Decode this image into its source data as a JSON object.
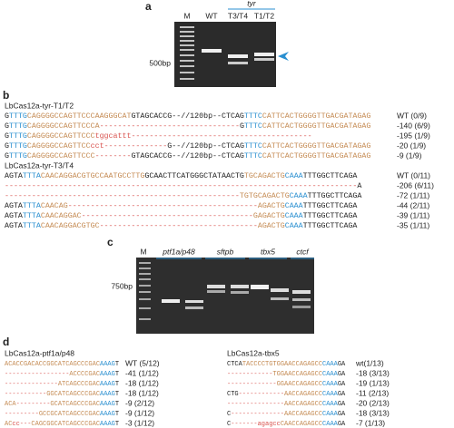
{
  "panel_a": {
    "label": "a",
    "lanes": [
      "M",
      "WT",
      "T3/T4",
      "T1/T2"
    ],
    "gene": "tyr",
    "size_marker": "500bp"
  },
  "panel_b": {
    "label": "b",
    "groups": [
      {
        "title": "LbCas12a-tyr-T1/T2",
        "lines": [
          {
            "segments": [
              [
                "G",
                "#222"
              ],
              [
                "TTTG",
                "#2a8fd0"
              ],
              [
                "CAGGGGCCAGTTCCCAAGGGCAT",
                "#c48a52"
              ],
              [
                "GTAGCACCG--//120bp--CTCAG",
                "#222"
              ],
              [
                "TTTC",
                "#2a8fd0"
              ],
              [
                "CATTCACTGGGGTTGACGATAGAG",
                "#c48a52"
              ]
            ],
            "result": "WT (0/9)"
          },
          {
            "segments": [
              [
                "G",
                "#222"
              ],
              [
                "TTTG",
                "#2a8fd0"
              ],
              [
                "CAGGGGCCAGTTCCCA",
                "#c48a52"
              ],
              [
                "-------------------------------",
                "#d9534f"
              ],
              [
                "G",
                "#222"
              ],
              [
                "TTTC",
                "#2a8fd0"
              ],
              [
                "CATTCACTGGGGTTGACGATAGAG",
                "#c48a52"
              ]
            ],
            "result": "-140 (6/9)"
          },
          {
            "segments": [
              [
                "G",
                "#222"
              ],
              [
                "TTTG",
                "#2a8fd0"
              ],
              [
                "CAGGGGCCAGTTCCC",
                "#c48a52"
              ],
              [
                "tggcattt",
                "#d9534f"
              ],
              [
                "----------------------------------------",
                "#d9534f"
              ]
            ],
            "result": "-195 (1/9)"
          },
          {
            "segments": [
              [
                "G",
                "#222"
              ],
              [
                "TTTG",
                "#2a8fd0"
              ],
              [
                "CAGGGGCCAGTTCC",
                "#c48a52"
              ],
              [
                "cct",
                "#d9534f"
              ],
              [
                "--------------",
                "#d9534f"
              ],
              [
                "G--//120bp--CTCAG",
                "#222"
              ],
              [
                "TTTC",
                "#2a8fd0"
              ],
              [
                "CATTCACTGGGGTTGACGATAGAG",
                "#c48a52"
              ]
            ],
            "result": "-20 (1/9)"
          },
          {
            "segments": [
              [
                "G",
                "#222"
              ],
              [
                "TTTG",
                "#2a8fd0"
              ],
              [
                "CAGGGGCCAGTTCCC",
                "#c48a52"
              ],
              [
                "--------",
                "#d9534f"
              ],
              [
                "GTAGCACCG--//120bp--CTCAG",
                "#222"
              ],
              [
                "TTTC",
                "#2a8fd0"
              ],
              [
                "CATTCACTGGGGTTGACGATAGAG",
                "#c48a52"
              ]
            ],
            "result": "-9 (1/9)"
          }
        ]
      },
      {
        "title": "LbCas12a-tyr-T3/T4",
        "lines": [
          {
            "segments": [
              [
                "AGTA",
                "#222"
              ],
              [
                "TTTA",
                "#2a8fd0"
              ],
              [
                "CAACAGGACGTGCCAATGCCTTG",
                "#c48a52"
              ],
              [
                "GCAACTTCATGGGCTATAACTG",
                "#222"
              ],
              [
                "TGCAGACTG",
                "#c48a52"
              ],
              [
                "CAAA",
                "#2a8fd0"
              ],
              [
                "TTTGGCTTCAGA",
                "#222"
              ]
            ],
            "result": "WT (0/11)"
          },
          {
            "segments": [
              [
                "------------------------------------------------------------------------------",
                "#d9534f"
              ],
              [
                "A",
                "#222"
              ]
            ],
            "result": "-206 (6/11)"
          },
          {
            "segments": [
              [
                "----------------------------------------------------",
                "#d9534f"
              ],
              [
                "TGTGCAGACTG",
                "#c48a52"
              ],
              [
                "CAAA",
                "#2a8fd0"
              ],
              [
                "TTTGGCTTCAGA",
                "#222"
              ]
            ],
            "result": "-72 (1/11)"
          },
          {
            "segments": [
              [
                "AGTA",
                "#222"
              ],
              [
                "TTTA",
                "#2a8fd0"
              ],
              [
                "CAACAG",
                "#c48a52"
              ],
              [
                "------------------------------------------",
                "#d9534f"
              ],
              [
                "AGACTG",
                "#c48a52"
              ],
              [
                "CAAA",
                "#2a8fd0"
              ],
              [
                "TTTGGCTTCAGA",
                "#222"
              ]
            ],
            "result": "-44 (2/11)"
          },
          {
            "segments": [
              [
                "AGTA",
                "#222"
              ],
              [
                "TTTA",
                "#2a8fd0"
              ],
              [
                "CAACAGGAC",
                "#c48a52"
              ],
              [
                "--------------------------------------",
                "#d9534f"
              ],
              [
                "GAGACTG",
                "#c48a52"
              ],
              [
                "CAAA",
                "#2a8fd0"
              ],
              [
                "TTTGGCTTCAGA",
                "#222"
              ]
            ],
            "result": "-39 (1/11)"
          },
          {
            "segments": [
              [
                "AGTA",
                "#222"
              ],
              [
                "TTTA",
                "#2a8fd0"
              ],
              [
                "CAACAGGACGTGC",
                "#c48a52"
              ],
              [
                "-----------------------------------",
                "#d9534f"
              ],
              [
                "AGACTG",
                "#c48a52"
              ],
              [
                "CAAA",
                "#2a8fd0"
              ],
              [
                "TTTGGCTTCAGA",
                "#222"
              ]
            ],
            "result": "-35 (1/11)"
          }
        ]
      }
    ]
  },
  "panel_c": {
    "label": "c",
    "lanes": [
      "M",
      "ptf1a/p48",
      "sftpb",
      "tbx5",
      "ctcf"
    ],
    "size_marker": "750bp"
  },
  "panel_d": {
    "label": "d",
    "groups": [
      {
        "title": "LbCas12a-ptf1a/p48",
        "lines": [
          {
            "segments": [
              [
                "ACACCGACACCGGCATCAGCCCGAC",
                "#c48a52"
              ],
              [
                "AAAG",
                "#2a8fd0"
              ],
              [
                "T",
                "#222"
              ]
            ],
            "result": "WT (5/12)"
          },
          {
            "segments": [
              [
                "-----------------",
                "#d9534f"
              ],
              [
                "ACCCCGAC",
                "#c48a52"
              ],
              [
                "AAAG",
                "#2a8fd0"
              ],
              [
                "T",
                "#222"
              ]
            ],
            "result": "-41 (1/12)"
          },
          {
            "segments": [
              [
                "--------------",
                "#d9534f"
              ],
              [
                "ATCAGCCCGAC",
                "#c48a52"
              ],
              [
                "AAAG",
                "#2a8fd0"
              ],
              [
                "T",
                "#222"
              ]
            ],
            "result": "-18 (1/12)"
          },
          {
            "segments": [
              [
                "-----------",
                "#d9534f"
              ],
              [
                "GGCATCAGCCCGAC",
                "#c48a52"
              ],
              [
                "AAAG",
                "#2a8fd0"
              ],
              [
                "T",
                "#222"
              ]
            ],
            "result": "-18 (1/12)"
          },
          {
            "segments": [
              [
                "ACA",
                "#c48a52"
              ],
              [
                "---------",
                "#d9534f"
              ],
              [
                "GCATCAGCCCGAC",
                "#c48a52"
              ],
              [
                "AAAG",
                "#2a8fd0"
              ],
              [
                "T",
                "#222"
              ]
            ],
            "result": "-9 (2/12)"
          },
          {
            "segments": [
              [
                "---------",
                "#d9534f"
              ],
              [
                "GCCGCATCAGCCCGAC",
                "#c48a52"
              ],
              [
                "AAAG",
                "#2a8fd0"
              ],
              [
                "T",
                "#222"
              ]
            ],
            "result": "-9 (1/12)"
          },
          {
            "segments": [
              [
                "AC",
                "#c48a52"
              ],
              [
                "cc---",
                "#d9534f"
              ],
              [
                "CAGCGGCATCAGCCCGAC",
                "#c48a52"
              ],
              [
                "AAAG",
                "#2a8fd0"
              ],
              [
                "T",
                "#222"
              ]
            ],
            "result": "-3 (1/12)"
          }
        ]
      },
      {
        "title": "LbCas12a-tbx5",
        "lines": [
          {
            "segments": [
              [
                "CTCA",
                "#222"
              ],
              [
                "TACCCCTGTGGAACCAGAGCC",
                "#c48a52"
              ],
              [
                "CAAA",
                "#2a8fd0"
              ],
              [
                "GA",
                "#222"
              ]
            ],
            "result": "wt(1/13)"
          },
          {
            "segments": [
              [
                "------------",
                "#d9534f"
              ],
              [
                "TGGAACCAGAGCC",
                "#c48a52"
              ],
              [
                "CAAA",
                "#2a8fd0"
              ],
              [
                "GA",
                "#222"
              ]
            ],
            "result": "-18 (3/13)"
          },
          {
            "segments": [
              [
                "-------------",
                "#d9534f"
              ],
              [
                "GGAACCAGAGCC",
                "#c48a52"
              ],
              [
                "CAAA",
                "#2a8fd0"
              ],
              [
                "GA",
                "#222"
              ]
            ],
            "result": "-19 (1/13)"
          },
          {
            "segments": [
              [
                "CTG",
                "#222"
              ],
              [
                "------------",
                "#d9534f"
              ],
              [
                "AACCAGAGCC",
                "#c48a52"
              ],
              [
                "CAAA",
                "#2a8fd0"
              ],
              [
                "GA",
                "#222"
              ]
            ],
            "result": "-11 (2/13)"
          },
          {
            "segments": [
              [
                "---------------",
                "#d9534f"
              ],
              [
                "AACCAGAGCC",
                "#c48a52"
              ],
              [
                "CAAA",
                "#2a8fd0"
              ],
              [
                "GA",
                "#222"
              ]
            ],
            "result": "-20 (2/13)"
          },
          {
            "segments": [
              [
                "C",
                "#222"
              ],
              [
                "--------------",
                "#d9534f"
              ],
              [
                "AACCAGAGCC",
                "#c48a52"
              ],
              [
                "CAAA",
                "#2a8fd0"
              ],
              [
                "GA",
                "#222"
              ]
            ],
            "result": "-18 (3/13)"
          },
          {
            "segments": [
              [
                "C",
                "#222"
              ],
              [
                "-------",
                "#d9534f"
              ],
              [
                "agagcc",
                "#d9534f"
              ],
              [
                "CAACCAGAGCC",
                "#c48a52"
              ],
              [
                "CAAA",
                "#2a8fd0"
              ],
              [
                "GA",
                "#222"
              ]
            ],
            "result": "-7 (1/13)"
          }
        ]
      }
    ]
  }
}
